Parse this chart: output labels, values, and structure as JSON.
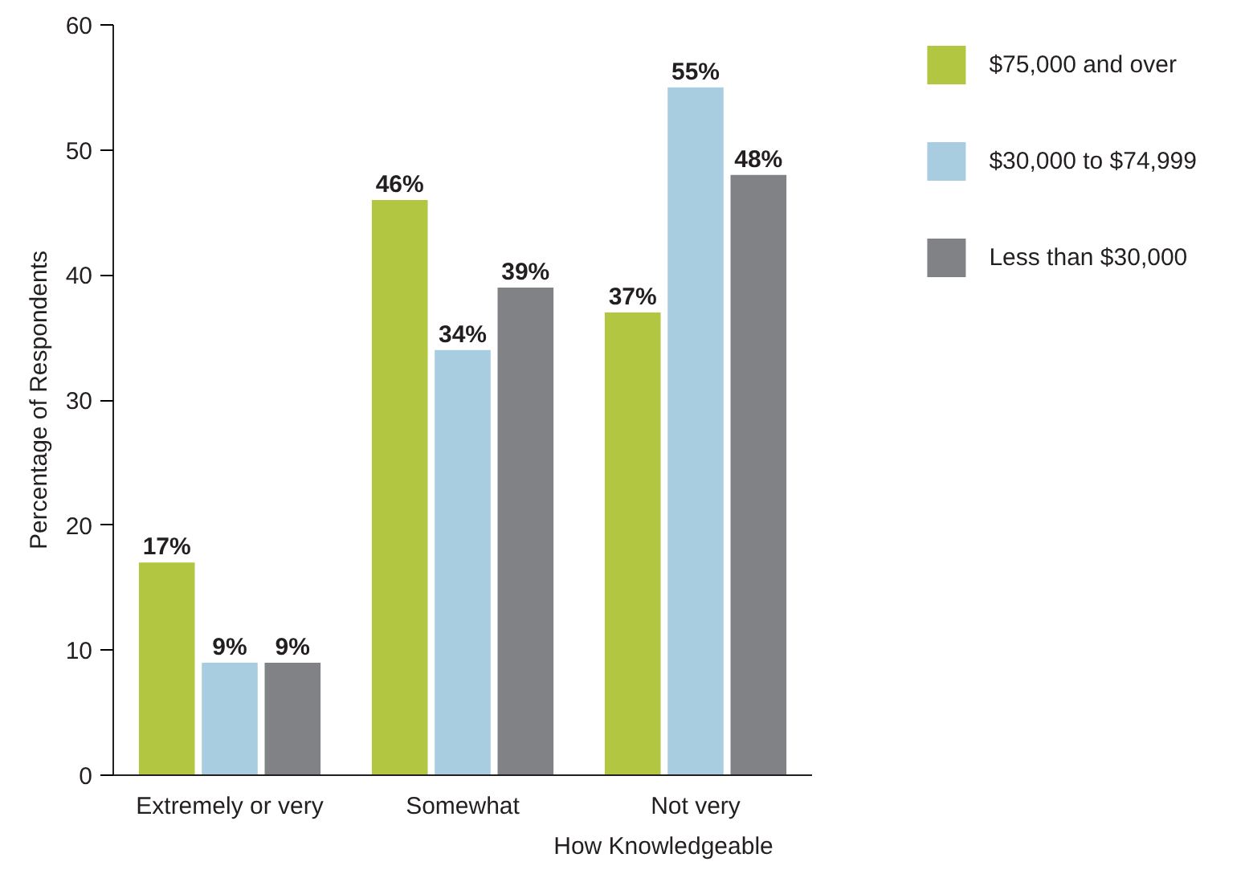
{
  "chart_data": {
    "type": "bar",
    "xlabel": "How Knowledgeable",
    "ylabel": "Percentage of Respondents",
    "categories": [
      "Extremely or very",
      "Somewhat",
      "Not very"
    ],
    "series": [
      {
        "name": "$75,000 and over",
        "color": "#b2c642",
        "values": [
          17,
          46,
          37
        ],
        "value_labels": [
          "17%",
          "46%",
          "37%"
        ]
      },
      {
        "name": "$30,000 to $74,999",
        "color": "#a8cde0",
        "values": [
          9,
          34,
          55
        ],
        "value_labels": [
          "9%",
          "34%",
          "55%"
        ]
      },
      {
        "name": "Less than $30,000",
        "color": "#808285",
        "values": [
          9,
          39,
          48
        ],
        "value_labels": [
          "9%",
          "39%",
          "48%"
        ]
      }
    ],
    "ylim": [
      0,
      60
    ],
    "yticks": [
      0,
      10,
      20,
      30,
      40,
      50,
      60
    ],
    "grid": false,
    "legend": "top right"
  }
}
